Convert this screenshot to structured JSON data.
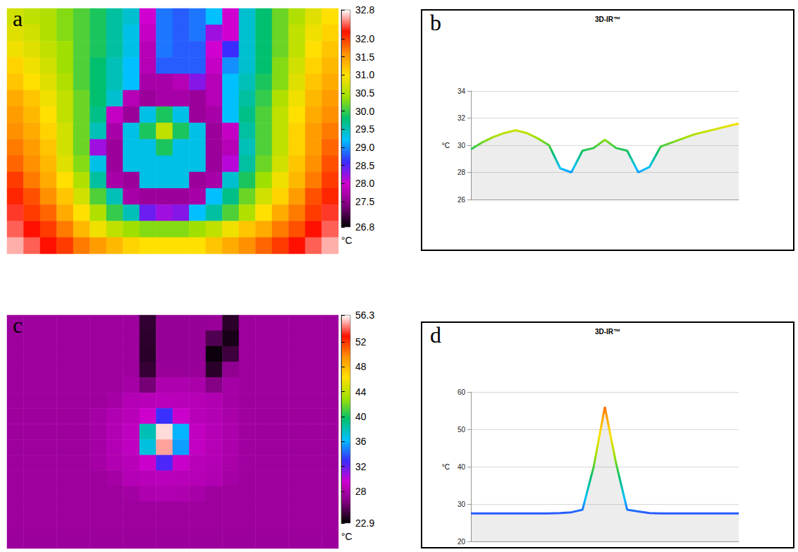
{
  "chart_data": [
    {
      "panel": "a",
      "type": "heatmap",
      "tick_labels": false,
      "cells": [
        [
          30.7,
          30.6,
          30.5,
          30.3,
          30.1,
          29.9,
          29.6,
          29.4,
          28.0,
          28.9,
          28.8,
          28.9,
          29.2,
          28.0,
          29.4,
          29.8,
          30.2,
          30.5,
          30.8,
          31.0
        ],
        [
          30.8,
          30.7,
          30.5,
          30.3,
          30.1,
          29.9,
          29.6,
          29.3,
          27.9,
          28.9,
          28.8,
          28.9,
          28.2,
          28.0,
          29.4,
          29.8,
          30.2,
          30.6,
          30.9,
          31.1
        ],
        [
          30.9,
          30.8,
          30.6,
          30.4,
          30.1,
          29.9,
          29.6,
          29.3,
          27.8,
          28.9,
          28.8,
          28.8,
          28.0,
          28.6,
          29.4,
          29.8,
          30.2,
          30.6,
          31.0,
          31.2
        ],
        [
          31.1,
          30.9,
          30.7,
          30.4,
          30.1,
          29.8,
          29.5,
          29.2,
          27.8,
          28.8,
          28.8,
          28.8,
          27.9,
          29.0,
          29.4,
          29.8,
          30.3,
          30.7,
          31.1,
          31.3
        ],
        [
          31.2,
          31.0,
          30.8,
          30.5,
          30.1,
          29.8,
          29.5,
          29.2,
          27.7,
          27.7,
          27.8,
          28.3,
          27.8,
          29.2,
          29.5,
          29.9,
          30.3,
          30.8,
          31.2,
          31.4
        ],
        [
          31.4,
          31.2,
          30.9,
          30.6,
          30.2,
          29.8,
          29.4,
          27.8,
          27.6,
          27.7,
          27.7,
          27.6,
          27.8,
          29.2,
          29.6,
          30.0,
          30.5,
          30.9,
          31.3,
          31.5
        ],
        [
          31.5,
          31.3,
          31.0,
          30.6,
          30.2,
          29.7,
          27.9,
          27.6,
          29.3,
          29.9,
          29.3,
          27.6,
          27.7,
          29.2,
          29.7,
          30.1,
          30.6,
          31.0,
          31.4,
          31.6
        ],
        [
          31.6,
          31.4,
          31.1,
          30.7,
          30.2,
          29.5,
          27.7,
          29.3,
          29.9,
          30.6,
          29.9,
          29.3,
          27.6,
          27.9,
          29.6,
          30.1,
          30.6,
          31.1,
          31.5,
          31.7
        ],
        [
          31.7,
          31.5,
          31.2,
          30.7,
          30.2,
          28.2,
          27.6,
          29.3,
          29.3,
          29.9,
          29.3,
          29.3,
          27.6,
          27.8,
          29.5,
          30.1,
          30.6,
          31.1,
          31.5,
          31.8
        ],
        [
          31.8,
          31.6,
          31.3,
          30.8,
          30.3,
          29.3,
          27.6,
          29.3,
          29.3,
          29.3,
          29.3,
          29.3,
          27.6,
          28.1,
          29.6,
          30.2,
          30.7,
          31.2,
          31.6,
          31.9
        ],
        [
          32.0,
          31.7,
          31.4,
          31.0,
          30.5,
          29.6,
          27.7,
          27.6,
          29.3,
          29.3,
          29.3,
          27.6,
          27.7,
          29.4,
          29.9,
          30.4,
          30.9,
          31.3,
          31.7,
          32.0
        ],
        [
          32.1,
          31.9,
          31.6,
          31.2,
          30.7,
          30.1,
          29.5,
          27.7,
          27.6,
          27.6,
          27.6,
          27.7,
          29.2,
          29.7,
          30.2,
          30.7,
          31.1,
          31.5,
          31.9,
          32.1
        ],
        [
          32.3,
          32.0,
          31.8,
          31.4,
          31.0,
          30.5,
          30.0,
          29.5,
          28.4,
          28.2,
          28.3,
          29.2,
          29.6,
          30.1,
          30.5,
          31.0,
          31.4,
          31.7,
          32.0,
          32.3
        ],
        [
          32.4,
          32.2,
          32.0,
          31.7,
          31.3,
          30.9,
          30.6,
          30.4,
          30.3,
          30.3,
          30.3,
          30.4,
          30.6,
          30.9,
          31.2,
          31.4,
          31.7,
          31.9,
          32.2,
          32.4
        ],
        [
          32.6,
          32.4,
          32.2,
          32.0,
          31.7,
          31.5,
          31.3,
          31.1,
          31.0,
          31.0,
          31.0,
          31.0,
          31.2,
          31.4,
          31.6,
          31.8,
          32.0,
          32.2,
          32.4,
          32.6
        ]
      ],
      "colorbar": {
        "range": [
          26.8,
          32.8
        ],
        "label": "°C",
        "ticks": [
          26.8,
          27.5,
          {
            "value": 28,
            "label": "28.0"
          },
          28.5,
          {
            "value": 29,
            "label": "29.0"
          },
          29.5,
          {
            "value": 30,
            "label": "30.0"
          },
          30.5,
          {
            "value": 31,
            "label": "31.0"
          },
          31.5,
          {
            "value": 32,
            "label": "32.0"
          },
          32.8
        ]
      }
    },
    {
      "panel": "b",
      "type": "line",
      "title": "3D-IR™",
      "y_label": "°C",
      "tick_labels": "y",
      "grid": true,
      "x": [
        0,
        1,
        2,
        3,
        4,
        5,
        6,
        7,
        8,
        9,
        10,
        11,
        12,
        13,
        14,
        15,
        16,
        17,
        18,
        19,
        20,
        21,
        22,
        23,
        24
      ],
      "values": [
        29.7,
        30.2,
        30.6,
        30.9,
        31.1,
        30.9,
        30.5,
        30.0,
        28.3,
        28.0,
        29.6,
        29.8,
        30.4,
        29.8,
        29.6,
        28.0,
        28.4,
        29.9,
        30.2,
        30.5,
        30.8,
        31.0,
        31.2,
        31.4,
        31.6
      ],
      "xlim": [
        0,
        24
      ],
      "ylim": [
        26,
        34
      ],
      "yticks": [
        26,
        28,
        30,
        32,
        34
      ]
    },
    {
      "panel": "c",
      "type": "heatmap",
      "tick_labels": false,
      "cells": [
        [
          27.5,
          27.5,
          27.5,
          27.5,
          27.5,
          27.5,
          27.5,
          27.5,
          24.2,
          27.2,
          27.2,
          27.2,
          27.3,
          24.0,
          27.5,
          27.5,
          27.5,
          27.5,
          27.5,
          27.5
        ],
        [
          27.5,
          27.5,
          27.5,
          27.5,
          27.5,
          27.5,
          27.5,
          27.5,
          24.1,
          27.2,
          27.2,
          27.2,
          25.0,
          23.5,
          27.5,
          27.5,
          27.5,
          27.5,
          27.5,
          27.5
        ],
        [
          27.5,
          27.5,
          27.5,
          27.5,
          27.5,
          27.5,
          27.5,
          27.5,
          24.0,
          27.2,
          27.2,
          27.2,
          23.2,
          24.5,
          27.5,
          27.5,
          27.5,
          27.5,
          27.5,
          27.5
        ],
        [
          27.5,
          27.5,
          27.5,
          27.5,
          27.5,
          27.5,
          27.5,
          27.5,
          24.3,
          27.3,
          27.3,
          27.3,
          24.0,
          27.0,
          27.5,
          27.5,
          27.5,
          27.5,
          27.5,
          27.5
        ],
        [
          27.5,
          27.5,
          27.5,
          27.5,
          27.5,
          27.5,
          27.5,
          27.8,
          26.0,
          28.2,
          28.2,
          28.0,
          26.5,
          27.8,
          27.5,
          27.5,
          27.5,
          27.5,
          27.5,
          27.5
        ],
        [
          27.5,
          27.5,
          27.5,
          27.5,
          27.5,
          27.5,
          27.8,
          28.4,
          28.6,
          28.7,
          28.6,
          28.5,
          28.3,
          27.8,
          27.5,
          27.5,
          27.5,
          27.5,
          27.5,
          27.5
        ],
        [
          27.5,
          27.5,
          27.5,
          27.5,
          27.5,
          27.8,
          28.3,
          28.6,
          29.5,
          33.0,
          29.4,
          28.6,
          28.4,
          28.0,
          27.6,
          27.5,
          27.5,
          27.5,
          27.5,
          27.5
        ],
        [
          27.5,
          27.5,
          27.5,
          27.5,
          27.5,
          27.8,
          28.4,
          28.9,
          38.0,
          55.8,
          36.0,
          29.0,
          28.5,
          28.1,
          27.6,
          27.5,
          27.5,
          27.5,
          27.5,
          27.5
        ],
        [
          27.5,
          27.5,
          27.5,
          27.5,
          27.5,
          27.8,
          28.4,
          28.9,
          37.0,
          55.0,
          35.5,
          29.0,
          28.5,
          28.1,
          27.6,
          27.5,
          27.5,
          27.5,
          27.5,
          27.5
        ],
        [
          27.5,
          27.5,
          27.5,
          27.5,
          27.5,
          27.8,
          28.3,
          28.6,
          29.4,
          32.5,
          29.3,
          28.6,
          28.4,
          28.0,
          27.6,
          27.5,
          27.5,
          27.5,
          27.5,
          27.5
        ],
        [
          27.5,
          27.5,
          27.5,
          27.5,
          27.5,
          27.5,
          27.8,
          28.4,
          28.6,
          28.7,
          28.6,
          28.5,
          28.3,
          27.8,
          27.5,
          27.5,
          27.5,
          27.5,
          27.5,
          27.5
        ],
        [
          27.5,
          27.5,
          27.5,
          27.5,
          27.5,
          27.5,
          27.5,
          27.7,
          28.2,
          28.3,
          28.2,
          27.9,
          27.5,
          27.5,
          27.5,
          27.5,
          27.5,
          27.5,
          27.5,
          27.5
        ],
        [
          27.5,
          27.5,
          27.5,
          27.5,
          27.5,
          27.5,
          27.5,
          27.5,
          27.5,
          27.5,
          27.5,
          27.5,
          27.5,
          27.5,
          27.5,
          27.5,
          27.5,
          27.5,
          27.5,
          27.5
        ],
        [
          27.5,
          27.5,
          27.5,
          27.5,
          27.5,
          27.5,
          27.5,
          27.5,
          27.5,
          27.5,
          27.5,
          27.5,
          27.5,
          27.5,
          27.5,
          27.5,
          27.5,
          27.5,
          27.5,
          27.5
        ],
        [
          27.4,
          27.4,
          27.4,
          27.4,
          27.4,
          27.4,
          27.4,
          27.4,
          27.4,
          27.4,
          27.4,
          27.4,
          27.4,
          27.4,
          27.4,
          27.4,
          27.4,
          27.4,
          27.4,
          27.4
        ]
      ],
      "colorbar": {
        "range": [
          22.9,
          56.3
        ],
        "label": "°C",
        "ticks": [
          22.9,
          28,
          32,
          36,
          40,
          44,
          48,
          52,
          56.3
        ]
      }
    },
    {
      "panel": "d",
      "type": "line",
      "title": "3D-IR™",
      "y_label": "°C",
      "tick_labels": "y",
      "grid": true,
      "x": [
        0,
        1,
        2,
        3,
        4,
        5,
        6,
        7,
        8,
        9,
        10,
        11,
        12,
        13,
        14,
        15,
        16,
        17,
        18,
        19,
        20,
        21,
        22,
        23,
        24
      ],
      "values": [
        27.5,
        27.5,
        27.5,
        27.5,
        27.5,
        27.5,
        27.5,
        27.5,
        27.6,
        27.8,
        28.5,
        40.0,
        56.0,
        41.0,
        28.5,
        28.0,
        27.6,
        27.5,
        27.5,
        27.5,
        27.5,
        27.5,
        27.5,
        27.5,
        27.5
      ],
      "xlim": [
        0,
        24
      ],
      "ylim": [
        20,
        60
      ],
      "yticks": [
        20,
        30,
        40,
        50,
        60
      ]
    }
  ]
}
